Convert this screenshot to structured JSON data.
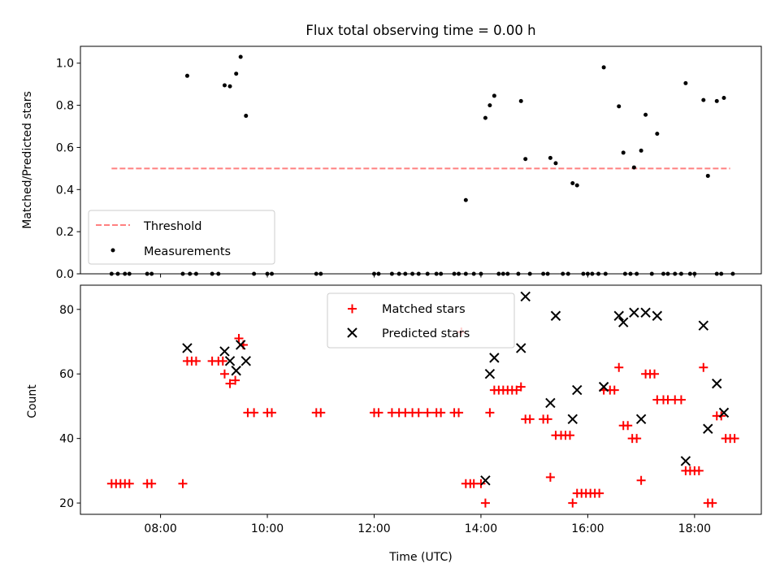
{
  "chart_data": [
    {
      "type": "scatter",
      "title": "Flux total observing time = 0.00 h",
      "xlabel": "",
      "ylabel": "Matched/Predicted stars",
      "ylim": [
        0,
        1.08
      ],
      "yticks": [
        "0.0",
        "0.2",
        "0.4",
        "0.6",
        "0.8",
        "1.0"
      ],
      "xlim": [
        "06:30",
        "19:15"
      ],
      "grid": false,
      "legend_position": "lower-left",
      "threshold": {
        "name": "Threshold",
        "value": 0.5,
        "x_start": "07:05",
        "x_end": "18:40",
        "color": "#ff8080"
      },
      "measurements_name": "Measurements",
      "measurements_color": "#000000",
      "measurements": [
        [
          "08:30",
          0.94
        ],
        [
          "09:12",
          0.895
        ],
        [
          "09:18",
          0.89
        ],
        [
          "09:25",
          0.95
        ],
        [
          "09:30",
          1.03
        ],
        [
          "09:36",
          0.75
        ],
        [
          "13:43",
          0.35
        ],
        [
          "14:05",
          0.74
        ],
        [
          "14:10",
          0.8
        ],
        [
          "14:15",
          0.845
        ],
        [
          "14:45",
          0.82
        ],
        [
          "14:50",
          0.545
        ],
        [
          "15:18",
          0.55
        ],
        [
          "15:24",
          0.525
        ],
        [
          "15:43",
          0.43
        ],
        [
          "15:48",
          0.42
        ],
        [
          "16:18",
          0.98
        ],
        [
          "16:35",
          0.795
        ],
        [
          "16:40",
          0.575
        ],
        [
          "16:52",
          0.505
        ],
        [
          "17:00",
          0.585
        ],
        [
          "17:05",
          0.755
        ],
        [
          "17:18",
          0.665
        ],
        [
          "17:50",
          0.905
        ],
        [
          "18:10",
          0.825
        ],
        [
          "18:15",
          0.465
        ],
        [
          "18:25",
          0.82
        ],
        [
          "18:33",
          0.835
        ],
        [
          "07:05",
          0
        ],
        [
          "07:12",
          0
        ],
        [
          "07:20",
          0
        ],
        [
          "07:25",
          0
        ],
        [
          "07:45",
          0
        ],
        [
          "07:50",
          0
        ],
        [
          "08:25",
          0
        ],
        [
          "08:33",
          0
        ],
        [
          "08:40",
          0
        ],
        [
          "08:58",
          0
        ],
        [
          "09:05",
          0
        ],
        [
          "09:45",
          0
        ],
        [
          "10:00",
          0
        ],
        [
          "10:05",
          0
        ],
        [
          "10:55",
          0
        ],
        [
          "11:00",
          0
        ],
        [
          "12:00",
          0
        ],
        [
          "12:05",
          0
        ],
        [
          "12:20",
          0
        ],
        [
          "12:28",
          0
        ],
        [
          "12:35",
          0
        ],
        [
          "12:43",
          0
        ],
        [
          "12:50",
          0
        ],
        [
          "13:00",
          0
        ],
        [
          "13:10",
          0
        ],
        [
          "13:15",
          0
        ],
        [
          "13:30",
          0
        ],
        [
          "13:35",
          0
        ],
        [
          "13:43",
          0
        ],
        [
          "13:52",
          0
        ],
        [
          "14:00",
          0
        ],
        [
          "14:20",
          0
        ],
        [
          "14:25",
          0
        ],
        [
          "14:30",
          0
        ],
        [
          "14:42",
          0
        ],
        [
          "14:55",
          0
        ],
        [
          "15:10",
          0
        ],
        [
          "15:15",
          0
        ],
        [
          "15:32",
          0
        ],
        [
          "15:38",
          0
        ],
        [
          "15:55",
          0
        ],
        [
          "16:00",
          0
        ],
        [
          "16:05",
          0
        ],
        [
          "16:12",
          0
        ],
        [
          "16:20",
          0
        ],
        [
          "16:42",
          0
        ],
        [
          "16:48",
          0
        ],
        [
          "16:55",
          0
        ],
        [
          "17:12",
          0
        ],
        [
          "17:25",
          0
        ],
        [
          "17:30",
          0
        ],
        [
          "17:38",
          0
        ],
        [
          "17:45",
          0
        ],
        [
          "17:55",
          0
        ],
        [
          "18:00",
          0
        ],
        [
          "18:25",
          0
        ],
        [
          "18:30",
          0
        ],
        [
          "18:43",
          0
        ]
      ]
    },
    {
      "type": "scatter",
      "xlabel": "Time (UTC)",
      "ylabel": "Count",
      "ylim": [
        16.5,
        87.5
      ],
      "yticks": [
        "20",
        "40",
        "60",
        "80"
      ],
      "xlim": [
        "06:30",
        "19:15"
      ],
      "xticks": [
        "08:00",
        "10:00",
        "12:00",
        "14:00",
        "16:00",
        "18:00"
      ],
      "grid": false,
      "legend_position": "upper-center",
      "series": [
        {
          "name": "Matched stars",
          "marker": "plus",
          "color": "#ff0000",
          "points": [
            [
              "07:05",
              26
            ],
            [
              "07:10",
              26
            ],
            [
              "07:15",
              26
            ],
            [
              "07:20",
              26
            ],
            [
              "07:25",
              26
            ],
            [
              "07:45",
              26
            ],
            [
              "07:50",
              26
            ],
            [
              "08:25",
              26
            ],
            [
              "08:30",
              64
            ],
            [
              "08:35",
              64
            ],
            [
              "08:40",
              64
            ],
            [
              "08:58",
              64
            ],
            [
              "09:05",
              64
            ],
            [
              "09:10",
              64
            ],
            [
              "09:12",
              60
            ],
            [
              "09:18",
              57
            ],
            [
              "09:24",
              58
            ],
            [
              "09:28",
              71
            ],
            [
              "09:33",
              69
            ],
            [
              "09:38",
              48
            ],
            [
              "09:45",
              48
            ],
            [
              "10:00",
              48
            ],
            [
              "10:05",
              48
            ],
            [
              "10:55",
              48
            ],
            [
              "11:00",
              48
            ],
            [
              "12:00",
              48
            ],
            [
              "12:05",
              48
            ],
            [
              "12:20",
              48
            ],
            [
              "12:28",
              48
            ],
            [
              "12:35",
              48
            ],
            [
              "12:43",
              48
            ],
            [
              "12:50",
              48
            ],
            [
              "13:00",
              48
            ],
            [
              "13:10",
              48
            ],
            [
              "13:15",
              48
            ],
            [
              "13:30",
              48
            ],
            [
              "13:35",
              48
            ],
            [
              "13:38",
              73
            ],
            [
              "13:43",
              26
            ],
            [
              "13:48",
              26
            ],
            [
              "13:52",
              26
            ],
            [
              "14:00",
              26
            ],
            [
              "14:05",
              20
            ],
            [
              "14:10",
              48
            ],
            [
              "14:15",
              55
            ],
            [
              "14:20",
              55
            ],
            [
              "14:25",
              55
            ],
            [
              "14:30",
              55
            ],
            [
              "14:35",
              55
            ],
            [
              "14:40",
              55
            ],
            [
              "14:45",
              56
            ],
            [
              "14:50",
              46
            ],
            [
              "14:55",
              46
            ],
            [
              "15:10",
              46
            ],
            [
              "15:15",
              46
            ],
            [
              "15:18",
              28
            ],
            [
              "15:24",
              41
            ],
            [
              "15:30",
              41
            ],
            [
              "15:35",
              41
            ],
            [
              "15:40",
              41
            ],
            [
              "15:43",
              20
            ],
            [
              "15:48",
              23
            ],
            [
              "15:53",
              23
            ],
            [
              "15:58",
              23
            ],
            [
              "16:03",
              23
            ],
            [
              "16:08",
              23
            ],
            [
              "16:13",
              23
            ],
            [
              "16:18",
              55
            ],
            [
              "16:25",
              55
            ],
            [
              "16:30",
              55
            ],
            [
              "16:35",
              62
            ],
            [
              "16:40",
              44
            ],
            [
              "16:45",
              44
            ],
            [
              "16:50",
              40
            ],
            [
              "16:55",
              40
            ],
            [
              "17:00",
              27
            ],
            [
              "17:05",
              60
            ],
            [
              "17:10",
              60
            ],
            [
              "17:15",
              60
            ],
            [
              "17:18",
              52
            ],
            [
              "17:25",
              52
            ],
            [
              "17:30",
              52
            ],
            [
              "17:38",
              52
            ],
            [
              "17:45",
              52
            ],
            [
              "17:50",
              30
            ],
            [
              "17:55",
              30
            ],
            [
              "18:00",
              30
            ],
            [
              "18:05",
              30
            ],
            [
              "18:10",
              62
            ],
            [
              "18:15",
              20
            ],
            [
              "18:20",
              20
            ],
            [
              "18:25",
              47
            ],
            [
              "18:30",
              47
            ],
            [
              "18:35",
              40
            ],
            [
              "18:40",
              40
            ],
            [
              "18:45",
              40
            ]
          ]
        },
        {
          "name": "Predicted stars",
          "marker": "x",
          "color": "#000000",
          "points": [
            [
              "08:30",
              68
            ],
            [
              "09:12",
              67
            ],
            [
              "09:18",
              64
            ],
            [
              "09:25",
              61
            ],
            [
              "09:30",
              69
            ],
            [
              "09:36",
              64
            ],
            [
              "14:05",
              27
            ],
            [
              "14:10",
              60
            ],
            [
              "14:15",
              65
            ],
            [
              "14:45",
              68
            ],
            [
              "14:50",
              84
            ],
            [
              "15:18",
              51
            ],
            [
              "15:24",
              78
            ],
            [
              "15:43",
              46
            ],
            [
              "15:48",
              55
            ],
            [
              "16:18",
              56
            ],
            [
              "16:35",
              78
            ],
            [
              "16:40",
              76
            ],
            [
              "16:52",
              79
            ],
            [
              "17:00",
              46
            ],
            [
              "17:05",
              79
            ],
            [
              "17:18",
              78
            ],
            [
              "17:50",
              33
            ],
            [
              "18:10",
              75
            ],
            [
              "18:15",
              43
            ],
            [
              "18:25",
              57
            ],
            [
              "18:33",
              48
            ]
          ]
        }
      ]
    }
  ]
}
